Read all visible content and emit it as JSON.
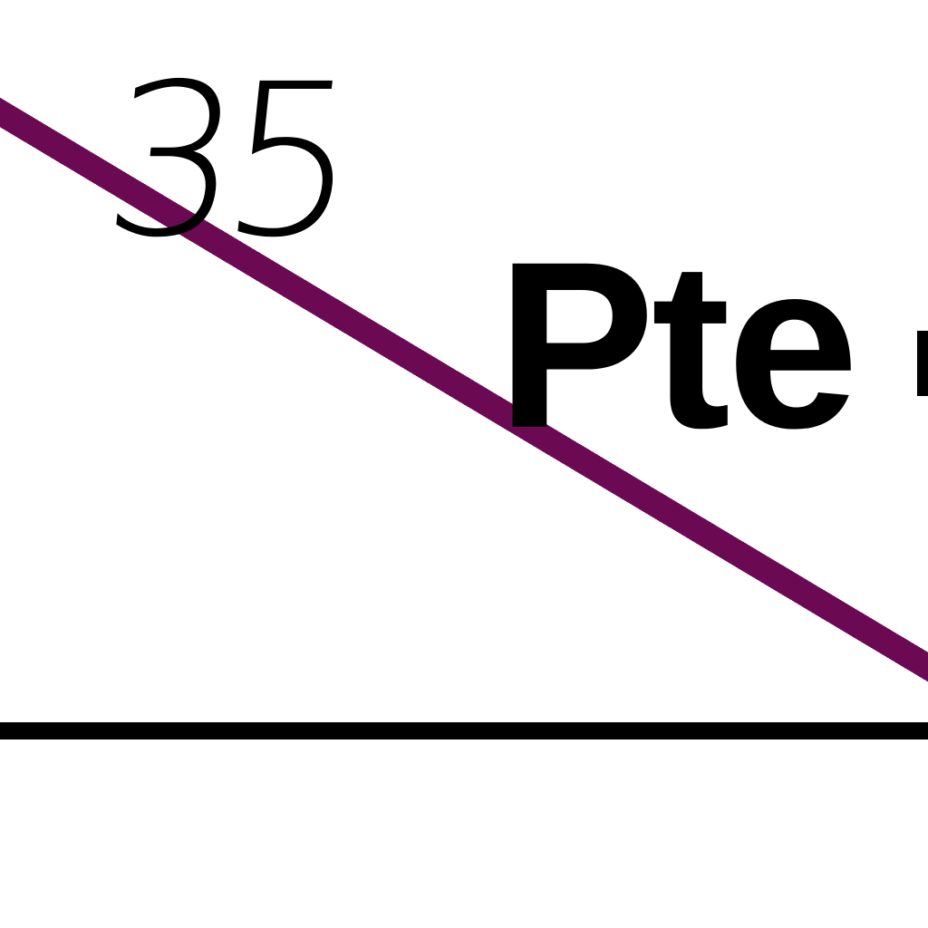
{
  "map": {
    "route_label": "35",
    "place_label": "Pte",
    "colors": {
      "background": "#ffffff",
      "route_line": "#6b0a52",
      "baseline": "#000000",
      "text": "#000000"
    },
    "icons": []
  }
}
